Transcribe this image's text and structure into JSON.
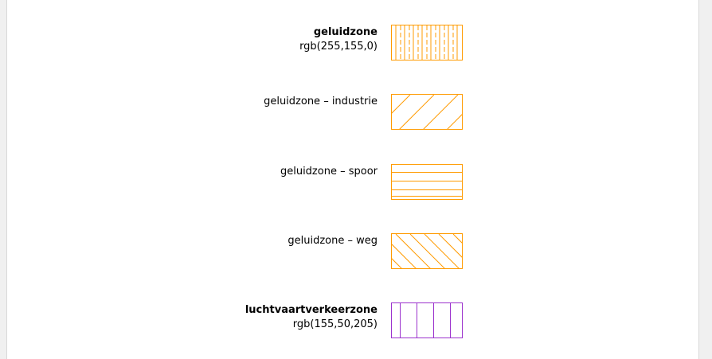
{
  "legend": {
    "items": [
      {
        "name": "geluidzone",
        "bold": true,
        "subtitle": "rgb(255,155,0)",
        "pattern": "vertical-dashed",
        "color": "#ff9b00"
      },
      {
        "name": "geluidzone – industrie",
        "bold": false,
        "subtitle": "",
        "pattern": "diagonal-forward",
        "color": "#ff9b00"
      },
      {
        "name": "geluidzone – spoor",
        "bold": false,
        "subtitle": "",
        "pattern": "horizontal",
        "color": "#ff9b00"
      },
      {
        "name": "geluidzone – weg",
        "bold": false,
        "subtitle": "",
        "pattern": "diagonal-back",
        "color": "#ff9b00"
      },
      {
        "name": "luchtvaartverkeerzone",
        "bold": true,
        "subtitle": "rgb(155,50,205)",
        "pattern": "vertical",
        "color": "#9b32cd"
      }
    ]
  }
}
